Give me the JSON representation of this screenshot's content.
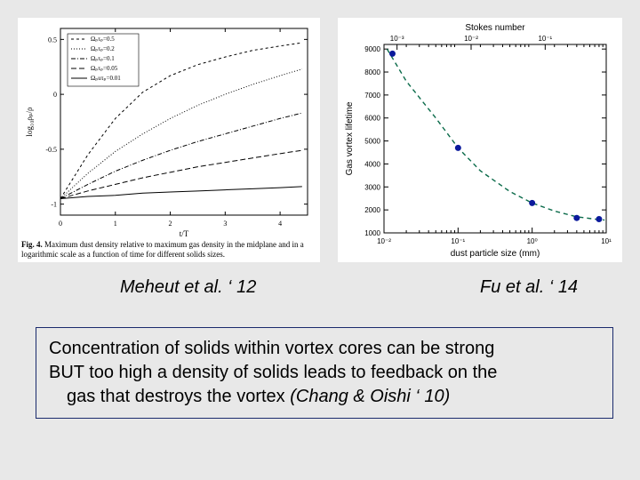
{
  "left_chart": {
    "type": "line",
    "xlabel": "t/T",
    "ylabel": "log₁₀ρₚ/ρ",
    "xlim": [
      0,
      4.5
    ],
    "ylim": [
      -1.1,
      0.6
    ],
    "xticks": [
      0,
      1,
      2,
      3,
      4
    ],
    "yticks": [
      -1,
      -0.5,
      0,
      0.5
    ],
    "label_fontsize": 9,
    "tick_fontsize": 8,
    "background_color": "#ffffff",
    "frame_color": "#000000",
    "series": [
      {
        "label": "Ωₚτₚ=0.5",
        "dash": "3,3",
        "points": [
          [
            0,
            -0.95
          ],
          [
            0.5,
            -0.55
          ],
          [
            1,
            -0.22
          ],
          [
            1.5,
            0.02
          ],
          [
            2,
            0.17
          ],
          [
            2.5,
            0.27
          ],
          [
            3,
            0.34
          ],
          [
            3.5,
            0.4
          ],
          [
            4,
            0.44
          ],
          [
            4.4,
            0.47
          ]
        ]
      },
      {
        "label": "Ωₚτₚ=0.2",
        "dash": "1,2",
        "points": [
          [
            0,
            -0.95
          ],
          [
            0.5,
            -0.72
          ],
          [
            1,
            -0.52
          ],
          [
            1.5,
            -0.36
          ],
          [
            2,
            -0.22
          ],
          [
            2.5,
            -0.1
          ],
          [
            3,
            0.0
          ],
          [
            3.5,
            0.09
          ],
          [
            4,
            0.17
          ],
          [
            4.4,
            0.23
          ]
        ]
      },
      {
        "label": "Ωₚτₚ=0.1",
        "dash": "5,2,1,2",
        "points": [
          [
            0,
            -0.95
          ],
          [
            0.5,
            -0.82
          ],
          [
            1,
            -0.7
          ],
          [
            1.5,
            -0.6
          ],
          [
            2,
            -0.51
          ],
          [
            2.5,
            -0.43
          ],
          [
            3,
            -0.36
          ],
          [
            3.5,
            -0.29
          ],
          [
            4,
            -0.22
          ],
          [
            4.4,
            -0.17
          ]
        ]
      },
      {
        "label": "Ωₚτₚ=0.05",
        "dash": "6,3",
        "points": [
          [
            0,
            -0.95
          ],
          [
            0.5,
            -0.88
          ],
          [
            1,
            -0.82
          ],
          [
            1.5,
            -0.76
          ],
          [
            2,
            -0.71
          ],
          [
            2.5,
            -0.66
          ],
          [
            3,
            -0.62
          ],
          [
            3.5,
            -0.58
          ],
          [
            4,
            -0.54
          ],
          [
            4.4,
            -0.51
          ]
        ]
      },
      {
        "label": "Ωₚuτₚ=0.01",
        "dash": "none",
        "points": [
          [
            0,
            -0.95
          ],
          [
            0.5,
            -0.93
          ],
          [
            1,
            -0.92
          ],
          [
            1.5,
            -0.9
          ],
          [
            2,
            -0.89
          ],
          [
            2.5,
            -0.88
          ],
          [
            3,
            -0.87
          ],
          [
            3.5,
            -0.86
          ],
          [
            4,
            -0.85
          ],
          [
            4.4,
            -0.84
          ]
        ]
      }
    ],
    "figure_label": "Fig. 4.",
    "figure_caption": "Maximum dust density relative to maximum gas density in the midplane and in a logarithmic scale as a function of time for different solids sizes."
  },
  "right_chart": {
    "type": "scatter-line",
    "xlabel": "dust particle size (mm)",
    "ylabel": "Gas vortex lifetime",
    "top_xlabel": "Stokes number",
    "x_scale": "log",
    "xlim": [
      0.01,
      10
    ],
    "ylim": [
      1000,
      9200
    ],
    "xticks": [
      0.01,
      0.1,
      1,
      10
    ],
    "xtick_labels": [
      "10⁻²",
      "10⁻¹",
      "10⁰",
      "10¹"
    ],
    "top_xticks": [
      "10⁻³",
      "10⁻²",
      "10⁻¹"
    ],
    "yticks": [
      1000,
      2000,
      3000,
      4000,
      5000,
      6000,
      7000,
      8000,
      9000
    ],
    "label_fontsize": 10,
    "tick_fontsize": 8,
    "background_color": "#ffffff",
    "frame_color": "#000000",
    "line_color": "#0b6b4a",
    "line_dash": "5,4",
    "marker_color": "#0b1a9c",
    "marker_radius": 3.5,
    "data_points": [
      {
        "x": 0.013,
        "y": 8800
      },
      {
        "x": 0.1,
        "y": 4700
      },
      {
        "x": 1.0,
        "y": 2300
      },
      {
        "x": 4.0,
        "y": 1650
      },
      {
        "x": 8.0,
        "y": 1600
      }
    ],
    "curve": [
      [
        0.011,
        9000
      ],
      [
        0.02,
        7600
      ],
      [
        0.05,
        6000
      ],
      [
        0.1,
        4700
      ],
      [
        0.2,
        3700
      ],
      [
        0.5,
        2800
      ],
      [
        1,
        2300
      ],
      [
        2,
        1950
      ],
      [
        4,
        1700
      ],
      [
        7,
        1600
      ],
      [
        9.5,
        1560
      ]
    ]
  },
  "citations": {
    "left": "Meheut et al. ‘ 12",
    "right": "Fu et al. ‘ 14"
  },
  "caption": {
    "line1a": "Concentration of solids within vortex cores can be strong",
    "line2_but": "BUT",
    "line2_rest": " too high a density of solids leads to feedback on the",
    "line3_plain": "gas that destroys the vortex ",
    "line3_italic": "(Chang & Oishi ‘ 10)"
  }
}
